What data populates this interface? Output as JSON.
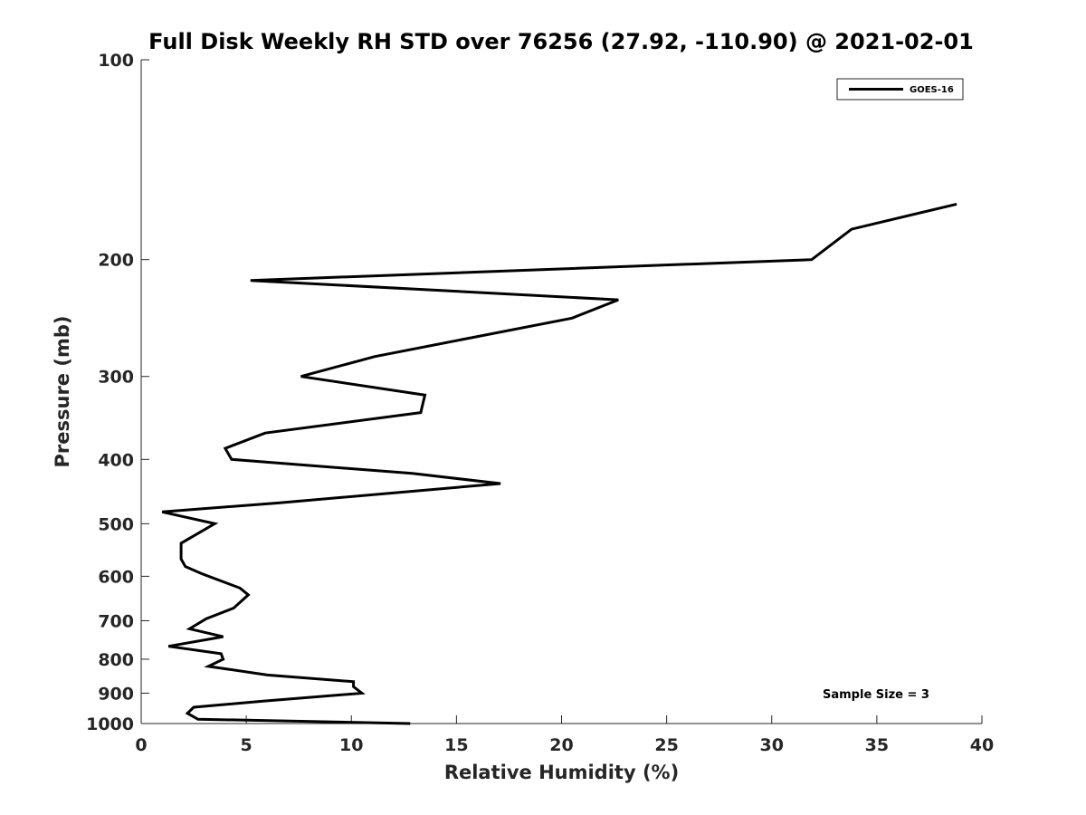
{
  "chart_data": {
    "type": "line",
    "title": "Full Disk Weekly RH STD over 76256 (27.92, -110.90) @ 2021-02-01",
    "xlabel": "Relative Humidity (%)",
    "ylabel": "Pressure (mb)",
    "xlim": [
      0,
      40
    ],
    "ylim": [
      100,
      1000
    ],
    "y_scale": "log",
    "y_reversed": true,
    "x_ticks": [
      "0",
      "5",
      "10",
      "15",
      "20",
      "25",
      "30",
      "35",
      "40"
    ],
    "y_ticks": [
      "100",
      "200",
      "300",
      "400",
      "500",
      "600",
      "700",
      "800",
      "900",
      "1000"
    ],
    "grid": false,
    "legend": {
      "position": "top-right",
      "entries": [
        "GOES-16"
      ]
    },
    "annotation": "Sample Size = 3",
    "series": [
      {
        "name": "GOES-16",
        "color": "#000000",
        "x": [
          38.8,
          33.8,
          31.9,
          5.2,
          22.7,
          20.5,
          11.1,
          7.6,
          13.5,
          13.3,
          5.9,
          4.0,
          4.3,
          12.9,
          17.1,
          6.6,
          1.0,
          3.5,
          1.9,
          1.9,
          2.1,
          2.9,
          4.7,
          5.1,
          4.4,
          3.1,
          2.3,
          3.9,
          1.3,
          3.8,
          3.9,
          3.2,
          6.0,
          10.1,
          10.1,
          10.5,
          5.8,
          2.5,
          2.2,
          2.7,
          12.8
        ],
        "y": [
          165,
          180,
          200,
          215,
          230,
          245,
          280,
          300,
          320,
          340,
          365,
          385,
          400,
          420,
          435,
          465,
          480,
          500,
          535,
          565,
          580,
          595,
          625,
          640,
          670,
          695,
          720,
          740,
          765,
          785,
          800,
          820,
          845,
          865,
          880,
          900,
          925,
          945,
          965,
          985,
          1000
        ]
      }
    ]
  }
}
